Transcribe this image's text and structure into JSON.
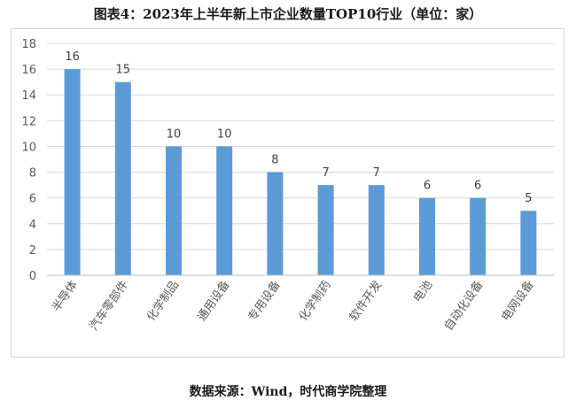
{
  "title": "图表4：2023年上半年新上市企业数量TOP10行业（单位：家）",
  "source": "数据来源：Wind，时代商学院整理",
  "chart_data": {
    "type": "bar",
    "categories": [
      "半导体",
      "汽车零部件",
      "化学制品",
      "通用设备",
      "专用设备",
      "化学制药",
      "软件开发",
      "电池",
      "自动化设备",
      "电网设备"
    ],
    "values": [
      16,
      15,
      10,
      10,
      8,
      7,
      7,
      6,
      6,
      5
    ],
    "ylim": [
      0,
      18
    ],
    "yticks": [
      0,
      2,
      4,
      6,
      8,
      10,
      12,
      14,
      16,
      18
    ],
    "grid": true,
    "bar_color": "#5b9bd5",
    "legend": "none"
  }
}
